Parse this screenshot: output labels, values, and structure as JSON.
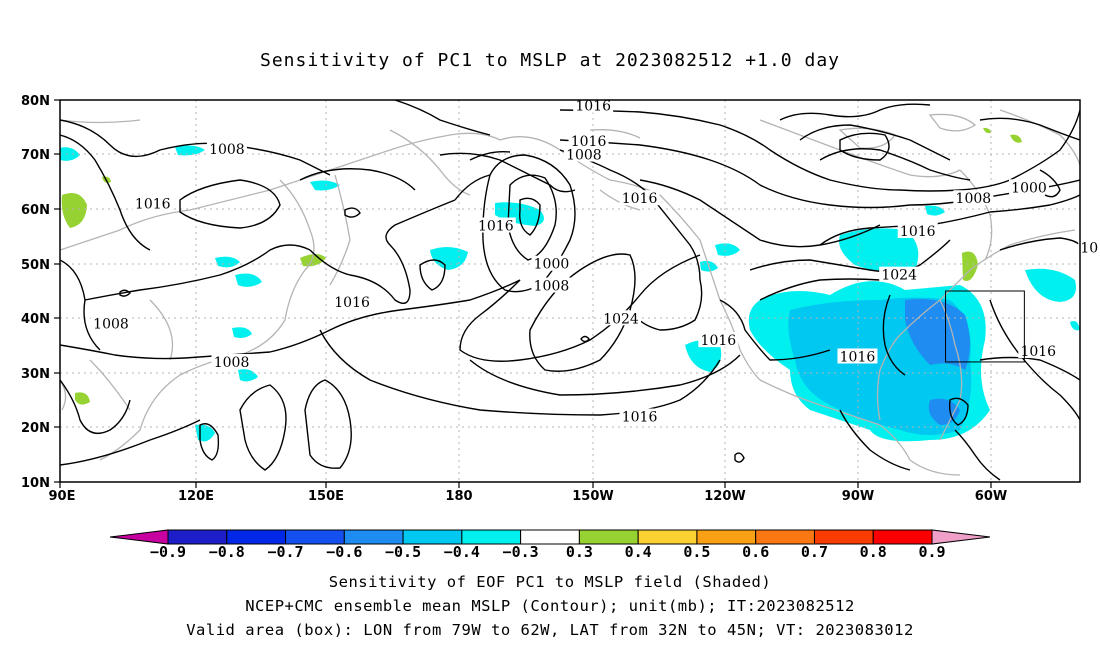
{
  "title": "Sensitivity of PC1 to MSLP at 2023082512 +1.0 day",
  "map": {
    "lat_labels": [
      "80N",
      "70N",
      "60N",
      "50N",
      "40N",
      "30N",
      "20N",
      "10N"
    ],
    "lon_labels": [
      "90E",
      "120E",
      "150E",
      "180",
      "150W",
      "120W",
      "90W",
      "60W"
    ],
    "contour_labels": [
      {
        "text": "1016",
        "lon": -155,
        "lat": 79
      },
      {
        "text": "1016",
        "lon": -156,
        "lat": 72.5
      },
      {
        "text": "1008",
        "lon": -157,
        "lat": 70
      },
      {
        "text": "1008",
        "lon": 126,
        "lat": 71
      },
      {
        "text": "1016",
        "lon": 110,
        "lat": 61
      },
      {
        "text": "1016",
        "lon": -176,
        "lat": 57
      },
      {
        "text": "1016",
        "lon": -145,
        "lat": 62
      },
      {
        "text": "1000",
        "lon": -164,
        "lat": 50
      },
      {
        "text": "1008",
        "lon": -164,
        "lat": 46
      },
      {
        "text": "1016",
        "lon": 153,
        "lat": 43
      },
      {
        "text": "1008",
        "lon": 101,
        "lat": 39
      },
      {
        "text": "1024",
        "lon": -149,
        "lat": 40
      },
      {
        "text": "1016",
        "lon": -128,
        "lat": 36
      },
      {
        "text": "1016",
        "lon": -98,
        "lat": 33
      },
      {
        "text": "1024",
        "lon": -89,
        "lat": 48
      },
      {
        "text": "1016",
        "lon": -85,
        "lat": 56
      },
      {
        "text": "1008",
        "lon": -73,
        "lat": 62
      },
      {
        "text": "1000",
        "lon": -61,
        "lat": 64
      },
      {
        "text": "1008",
        "lon": 127,
        "lat": 32
      },
      {
        "text": "1016",
        "lon": -145,
        "lat": 22
      },
      {
        "text": "1016",
        "lon": -59,
        "lat": 34
      },
      {
        "text": "10",
        "lon": -48,
        "lat": 53
      }
    ],
    "box": {
      "lon": [
        -79,
        -62
      ],
      "lat": [
        32,
        45
      ]
    },
    "colors": {
      "contour": "#000000",
      "coast": "#b4b4b4",
      "grid": "#b4b4b4"
    }
  },
  "colorbar": {
    "labels": [
      "-0.9",
      "-0.8",
      "-0.7",
      "-0.6",
      "-0.5",
      "-0.4",
      "-0.3",
      "0.3",
      "0.4",
      "0.5",
      "0.6",
      "0.7",
      "0.8",
      "0.9"
    ],
    "colors": [
      "#c800a0",
      "#1e1ec8",
      "#0028e6",
      "#1450f0",
      "#1e8cf0",
      "#00c8f0",
      "#00f0f0",
      "#ffffff",
      "#96d232",
      "#fad232",
      "#faa014",
      "#fa7814",
      "#fa3c00",
      "#fa0000",
      "#f0a0c8"
    ]
  },
  "captions": [
    "Sensitivity of EOF PC1 to MSLP field (Shaded)",
    "NCEP+CMC ensemble mean MSLP (Contour); unit(mb); IT:2023082512",
    "Valid area (box): LON from 79W to 62W, LAT from 32N to 45N; VT: 2023083012"
  ]
}
